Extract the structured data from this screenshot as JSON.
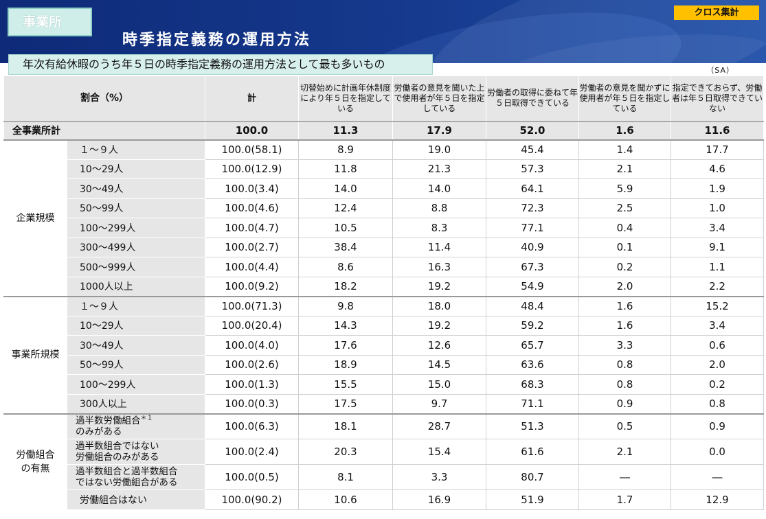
{
  "header": {
    "tag": "事業所",
    "title": "時季指定義務の運用方法",
    "cross_tag": "クロス集計",
    "subtitle": "年次有給休暇のうち年５日の時季指定義務の運用方法として最も多いもの",
    "note": "（SA）"
  },
  "table": {
    "columns": {
      "ratio": "割合（%）",
      "total": "計",
      "c1": "切替始めに計画年休制度により年５日を指定している",
      "c2": "労働者の意見を聞いた上で使用者が年５日を指定している",
      "c3": "労働者の取得に委ねて年５日取得できている",
      "c4": "労働者の意見を聞かずに使用者が年５日を指定している",
      "c5": "指定できておらず、労働者は年５日取得できていない"
    },
    "all": {
      "label": "全事業所計",
      "total": "100.0",
      "v1": "11.3",
      "v2": "17.9",
      "v3": "52.0",
      "v4": "1.6",
      "v5": "11.6"
    },
    "groups": [
      {
        "name": "企業規模",
        "rows": [
          {
            "label": "１～９人",
            "total": "100.0(58.1)",
            "v1": "8.9",
            "v2": "19.0",
            "v3": "45.4",
            "v4": "1.4",
            "v5": "17.7"
          },
          {
            "label": "10～29人",
            "total": "100.0(12.9)",
            "v1": "11.8",
            "v2": "21.3",
            "v3": "57.3",
            "v4": "2.1",
            "v5": "4.6"
          },
          {
            "label": "30～49人",
            "total": "100.0(3.4)",
            "v1": "14.0",
            "v2": "14.0",
            "v3": "64.1",
            "v4": "5.9",
            "v5": "1.9"
          },
          {
            "label": "50～99人",
            "total": "100.0(4.6)",
            "v1": "12.4",
            "v2": "8.8",
            "v3": "72.3",
            "v4": "2.5",
            "v5": "1.0"
          },
          {
            "label": "100～299人",
            "total": "100.0(4.7)",
            "v1": "10.5",
            "v2": "8.3",
            "v3": "77.1",
            "v4": "0.4",
            "v5": "3.4"
          },
          {
            "label": "300～499人",
            "total": "100.0(2.7)",
            "v1": "38.4",
            "v2": "11.4",
            "v3": "40.9",
            "v4": "0.1",
            "v5": "9.1"
          },
          {
            "label": "500～999人",
            "total": "100.0(4.4)",
            "v1": "8.6",
            "v2": "16.3",
            "v3": "67.3",
            "v4": "0.2",
            "v5": "1.1"
          },
          {
            "label": "1000人以上",
            "total": "100.0(9.2)",
            "v1": "18.2",
            "v2": "19.2",
            "v3": "54.9",
            "v4": "2.0",
            "v5": "2.2"
          }
        ]
      },
      {
        "name": "事業所規模",
        "rows": [
          {
            "label": "１～９人",
            "total": "100.0(71.3)",
            "v1": "9.8",
            "v2": "18.0",
            "v3": "48.4",
            "v4": "1.6",
            "v5": "15.2"
          },
          {
            "label": "10～29人",
            "total": "100.0(20.4)",
            "v1": "14.3",
            "v2": "19.2",
            "v3": "59.2",
            "v4": "1.6",
            "v5": "3.4"
          },
          {
            "label": "30～49人",
            "total": "100.0(4.0)",
            "v1": "17.6",
            "v2": "12.6",
            "v3": "65.7",
            "v4": "3.3",
            "v5": "0.6"
          },
          {
            "label": "50～99人",
            "total": "100.0(2.6)",
            "v1": "18.9",
            "v2": "14.5",
            "v3": "63.6",
            "v4": "0.8",
            "v5": "2.0"
          },
          {
            "label": "100～299人",
            "total": "100.0(1.3)",
            "v1": "15.5",
            "v2": "15.0",
            "v3": "68.3",
            "v4": "0.8",
            "v5": "0.2"
          },
          {
            "label": "300人以上",
            "total": "100.0(0.3)",
            "v1": "17.5",
            "v2": "9.7",
            "v3": "71.1",
            "v4": "0.9",
            "v5": "0.8"
          }
        ]
      },
      {
        "name": "労働組合の有無",
        "rows": [
          {
            "label": "過半数労働組合",
            "label_sup": "＊１",
            "label2": "のみがある",
            "total": "100.0(6.3)",
            "v1": "18.1",
            "v2": "28.7",
            "v3": "51.3",
            "v4": "0.5",
            "v5": "0.9"
          },
          {
            "label": "過半数組合ではない",
            "label2": "労働組合のみがある",
            "total": "100.0(2.4)",
            "v1": "20.3",
            "v2": "15.4",
            "v3": "61.6",
            "v4": "2.1",
            "v5": "0.0"
          },
          {
            "label": "過半数組合と過半数組合",
            "label2": "ではない労働組合がある",
            "total": "100.0(0.5)",
            "v1": "8.1",
            "v2": "3.3",
            "v3": "80.7",
            "v4": "―",
            "v5": "―"
          },
          {
            "label": "労働組合はない",
            "total": "100.0(90.2)",
            "v1": "10.6",
            "v2": "16.9",
            "v3": "51.9",
            "v4": "1.7",
            "v5": "12.9"
          }
        ]
      }
    ]
  }
}
